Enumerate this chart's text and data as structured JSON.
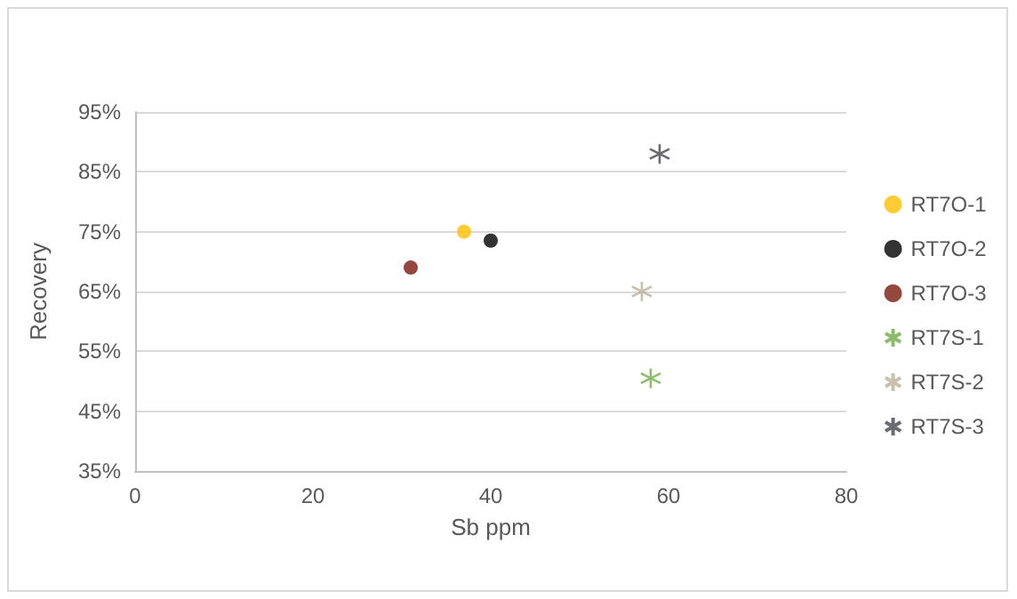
{
  "chart_data": {
    "type": "scatter",
    "xlabel": "Sb ppm",
    "ylabel": "Recovery",
    "xlim": [
      0,
      80
    ],
    "xticks": [
      0,
      20,
      40,
      60,
      80
    ],
    "ylim": [
      35,
      95
    ],
    "yticks": [
      {
        "value": 35,
        "label": "35%"
      },
      {
        "value": 45,
        "label": "45%"
      },
      {
        "value": 55,
        "label": "55%"
      },
      {
        "value": 65,
        "label": "65%"
      },
      {
        "value": 75,
        "label": "75%"
      },
      {
        "value": 85,
        "label": "85%"
      },
      {
        "value": 95,
        "label": "95%"
      }
    ],
    "grid": "y",
    "legend": "right",
    "series": [
      {
        "name": "RT7O-1",
        "color": "#ffc000",
        "marker": "circle",
        "x": [
          37
        ],
        "values": [
          75
        ]
      },
      {
        "name": "RT7O-2",
        "color": "#000000",
        "marker": "circle",
        "x": [
          40
        ],
        "values": [
          73.5
        ]
      },
      {
        "name": "RT7O-3",
        "color": "#7b1a0c",
        "marker": "circle",
        "x": [
          31
        ],
        "values": [
          69
        ]
      },
      {
        "name": "RT7S-1",
        "color": "#70ad47",
        "marker": "cross",
        "x": [
          58
        ],
        "values": [
          50.5
        ]
      },
      {
        "name": "RT7S-2",
        "color": "#bcb19a",
        "marker": "cross",
        "x": [
          57
        ],
        "values": [
          65
        ]
      },
      {
        "name": "RT7S-3",
        "color": "#44464d",
        "marker": "cross",
        "x": [
          59
        ],
        "values": [
          88
        ]
      }
    ]
  }
}
